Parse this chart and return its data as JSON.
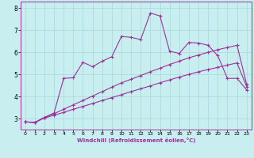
{
  "xlabel": "Windchill (Refroidissement éolien,°C)",
  "background_color": "#c8eef0",
  "grid_color": "#a8d8dc",
  "line_color": "#993399",
  "xlim": [
    -0.5,
    23.5
  ],
  "ylim": [
    2.5,
    8.3
  ],
  "xticks": [
    0,
    1,
    2,
    3,
    4,
    5,
    6,
    7,
    8,
    9,
    10,
    11,
    12,
    13,
    14,
    15,
    16,
    17,
    18,
    19,
    20,
    21,
    22,
    23
  ],
  "yticks": [
    3,
    4,
    5,
    6,
    7,
    8
  ],
  "series": [
    {
      "x": [
        0,
        1,
        2,
        3,
        4,
        5,
        6,
        7,
        8,
        9,
        10,
        11,
        12,
        13,
        14,
        15,
        16,
        17,
        18,
        19,
        20,
        21,
        22,
        23
      ],
      "y": [
        2.85,
        2.82,
        3.02,
        3.15,
        3.28,
        3.42,
        3.55,
        3.68,
        3.82,
        3.95,
        4.08,
        4.22,
        4.35,
        4.48,
        4.62,
        4.75,
        4.88,
        5.0,
        5.12,
        5.22,
        5.32,
        5.42,
        5.52,
        4.45
      ]
    },
    {
      "x": [
        0,
        1,
        2,
        3,
        4,
        5,
        6,
        7,
        8,
        9,
        10,
        11,
        12,
        13,
        14,
        15,
        16,
        17,
        18,
        19,
        20,
        21,
        22,
        23
      ],
      "y": [
        2.85,
        2.82,
        3.05,
        3.22,
        3.42,
        3.62,
        3.82,
        4.02,
        4.22,
        4.42,
        4.62,
        4.78,
        4.95,
        5.12,
        5.28,
        5.45,
        5.6,
        5.75,
        5.88,
        6.0,
        6.12,
        6.22,
        6.32,
        4.55
      ]
    },
    {
      "x": [
        0,
        1,
        2,
        3,
        4,
        5,
        6,
        7,
        8,
        9,
        10,
        11,
        12,
        13,
        14,
        15,
        16,
        17,
        18,
        19,
        20,
        21,
        22,
        23
      ],
      "y": [
        2.85,
        2.82,
        3.05,
        3.25,
        4.82,
        4.85,
        5.55,
        5.35,
        5.6,
        5.8,
        6.72,
        6.68,
        6.58,
        7.78,
        7.65,
        6.05,
        5.95,
        6.45,
        6.42,
        6.32,
        5.85,
        4.82,
        4.82,
        4.3
      ]
    }
  ]
}
